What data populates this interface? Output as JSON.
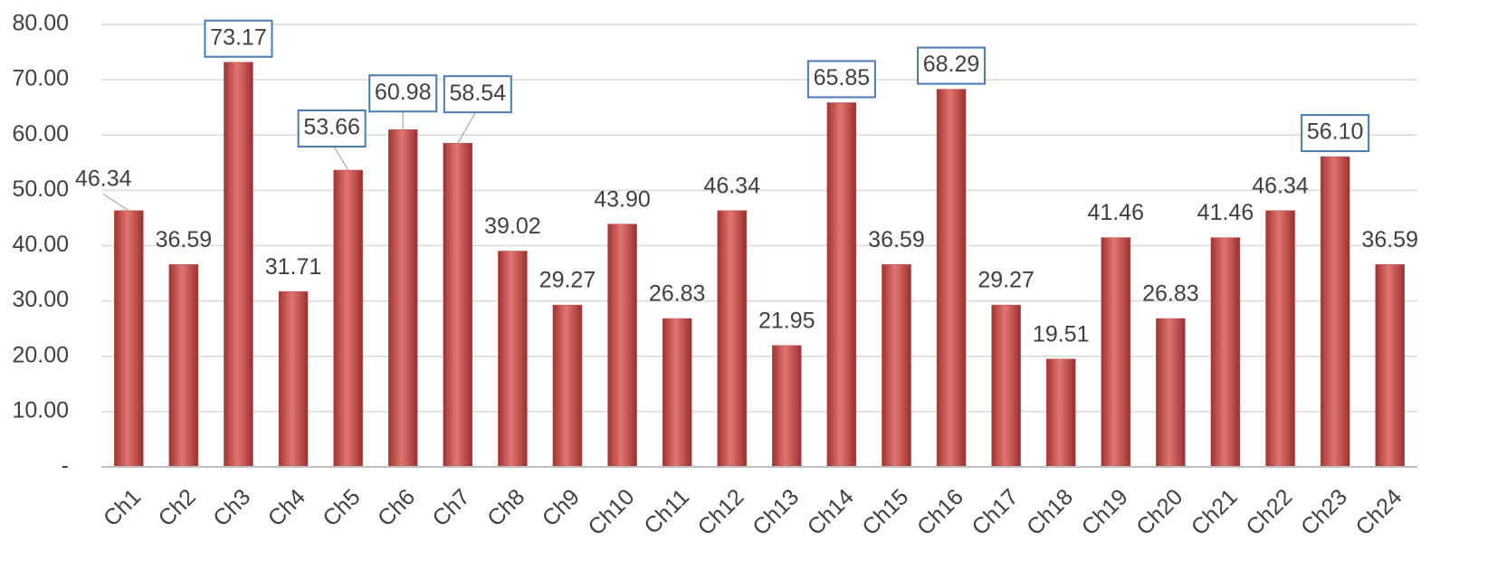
{
  "chart_data": {
    "type": "bar",
    "categories": [
      "Ch1",
      "Ch2",
      "Ch3",
      "Ch4",
      "Ch5",
      "Ch6",
      "Ch7",
      "Ch8",
      "Ch9",
      "Ch10",
      "Ch11",
      "Ch12",
      "Ch13",
      "Ch14",
      "Ch15",
      "Ch16",
      "Ch17",
      "Ch18",
      "Ch19",
      "Ch20",
      "Ch21",
      "Ch22",
      "Ch23",
      "Ch24"
    ],
    "values": [
      46.34,
      36.59,
      73.17,
      31.71,
      53.66,
      60.98,
      58.54,
      39.02,
      29.27,
      43.9,
      26.83,
      46.34,
      21.95,
      65.85,
      36.59,
      68.29,
      29.27,
      19.51,
      41.46,
      26.83,
      41.46,
      46.34,
      56.1,
      36.59
    ],
    "value_labels": [
      "46.34",
      "36.59",
      "73.17",
      "31.71",
      "53.66",
      "60.98",
      "58.54",
      "39.02",
      "29.27",
      "43.90",
      "26.83",
      "46.34",
      "21.95",
      "65.85",
      "36.59",
      "68.29",
      "29.27",
      "19.51",
      "41.46",
      "26.83",
      "41.46",
      "46.34",
      "56.10",
      "36.59"
    ],
    "color": "#c0504d",
    "boxed_labels": [
      2,
      4,
      5,
      6,
      13,
      15,
      22
    ],
    "label_box_color": "#4a7ab0",
    "ylim": [
      0,
      80
    ],
    "yticks": [
      {
        "value": 0,
        "label": "-"
      },
      {
        "value": 10,
        "label": "10.00"
      },
      {
        "value": 20,
        "label": "20.00"
      },
      {
        "value": 30,
        "label": "30.00"
      },
      {
        "value": 40,
        "label": "40.00"
      },
      {
        "value": 50,
        "label": "50.00"
      },
      {
        "value": 60,
        "label": "60.00"
      },
      {
        "value": 70,
        "label": "70.00"
      },
      {
        "value": 80,
        "label": "80.00"
      }
    ],
    "grid": true
  }
}
